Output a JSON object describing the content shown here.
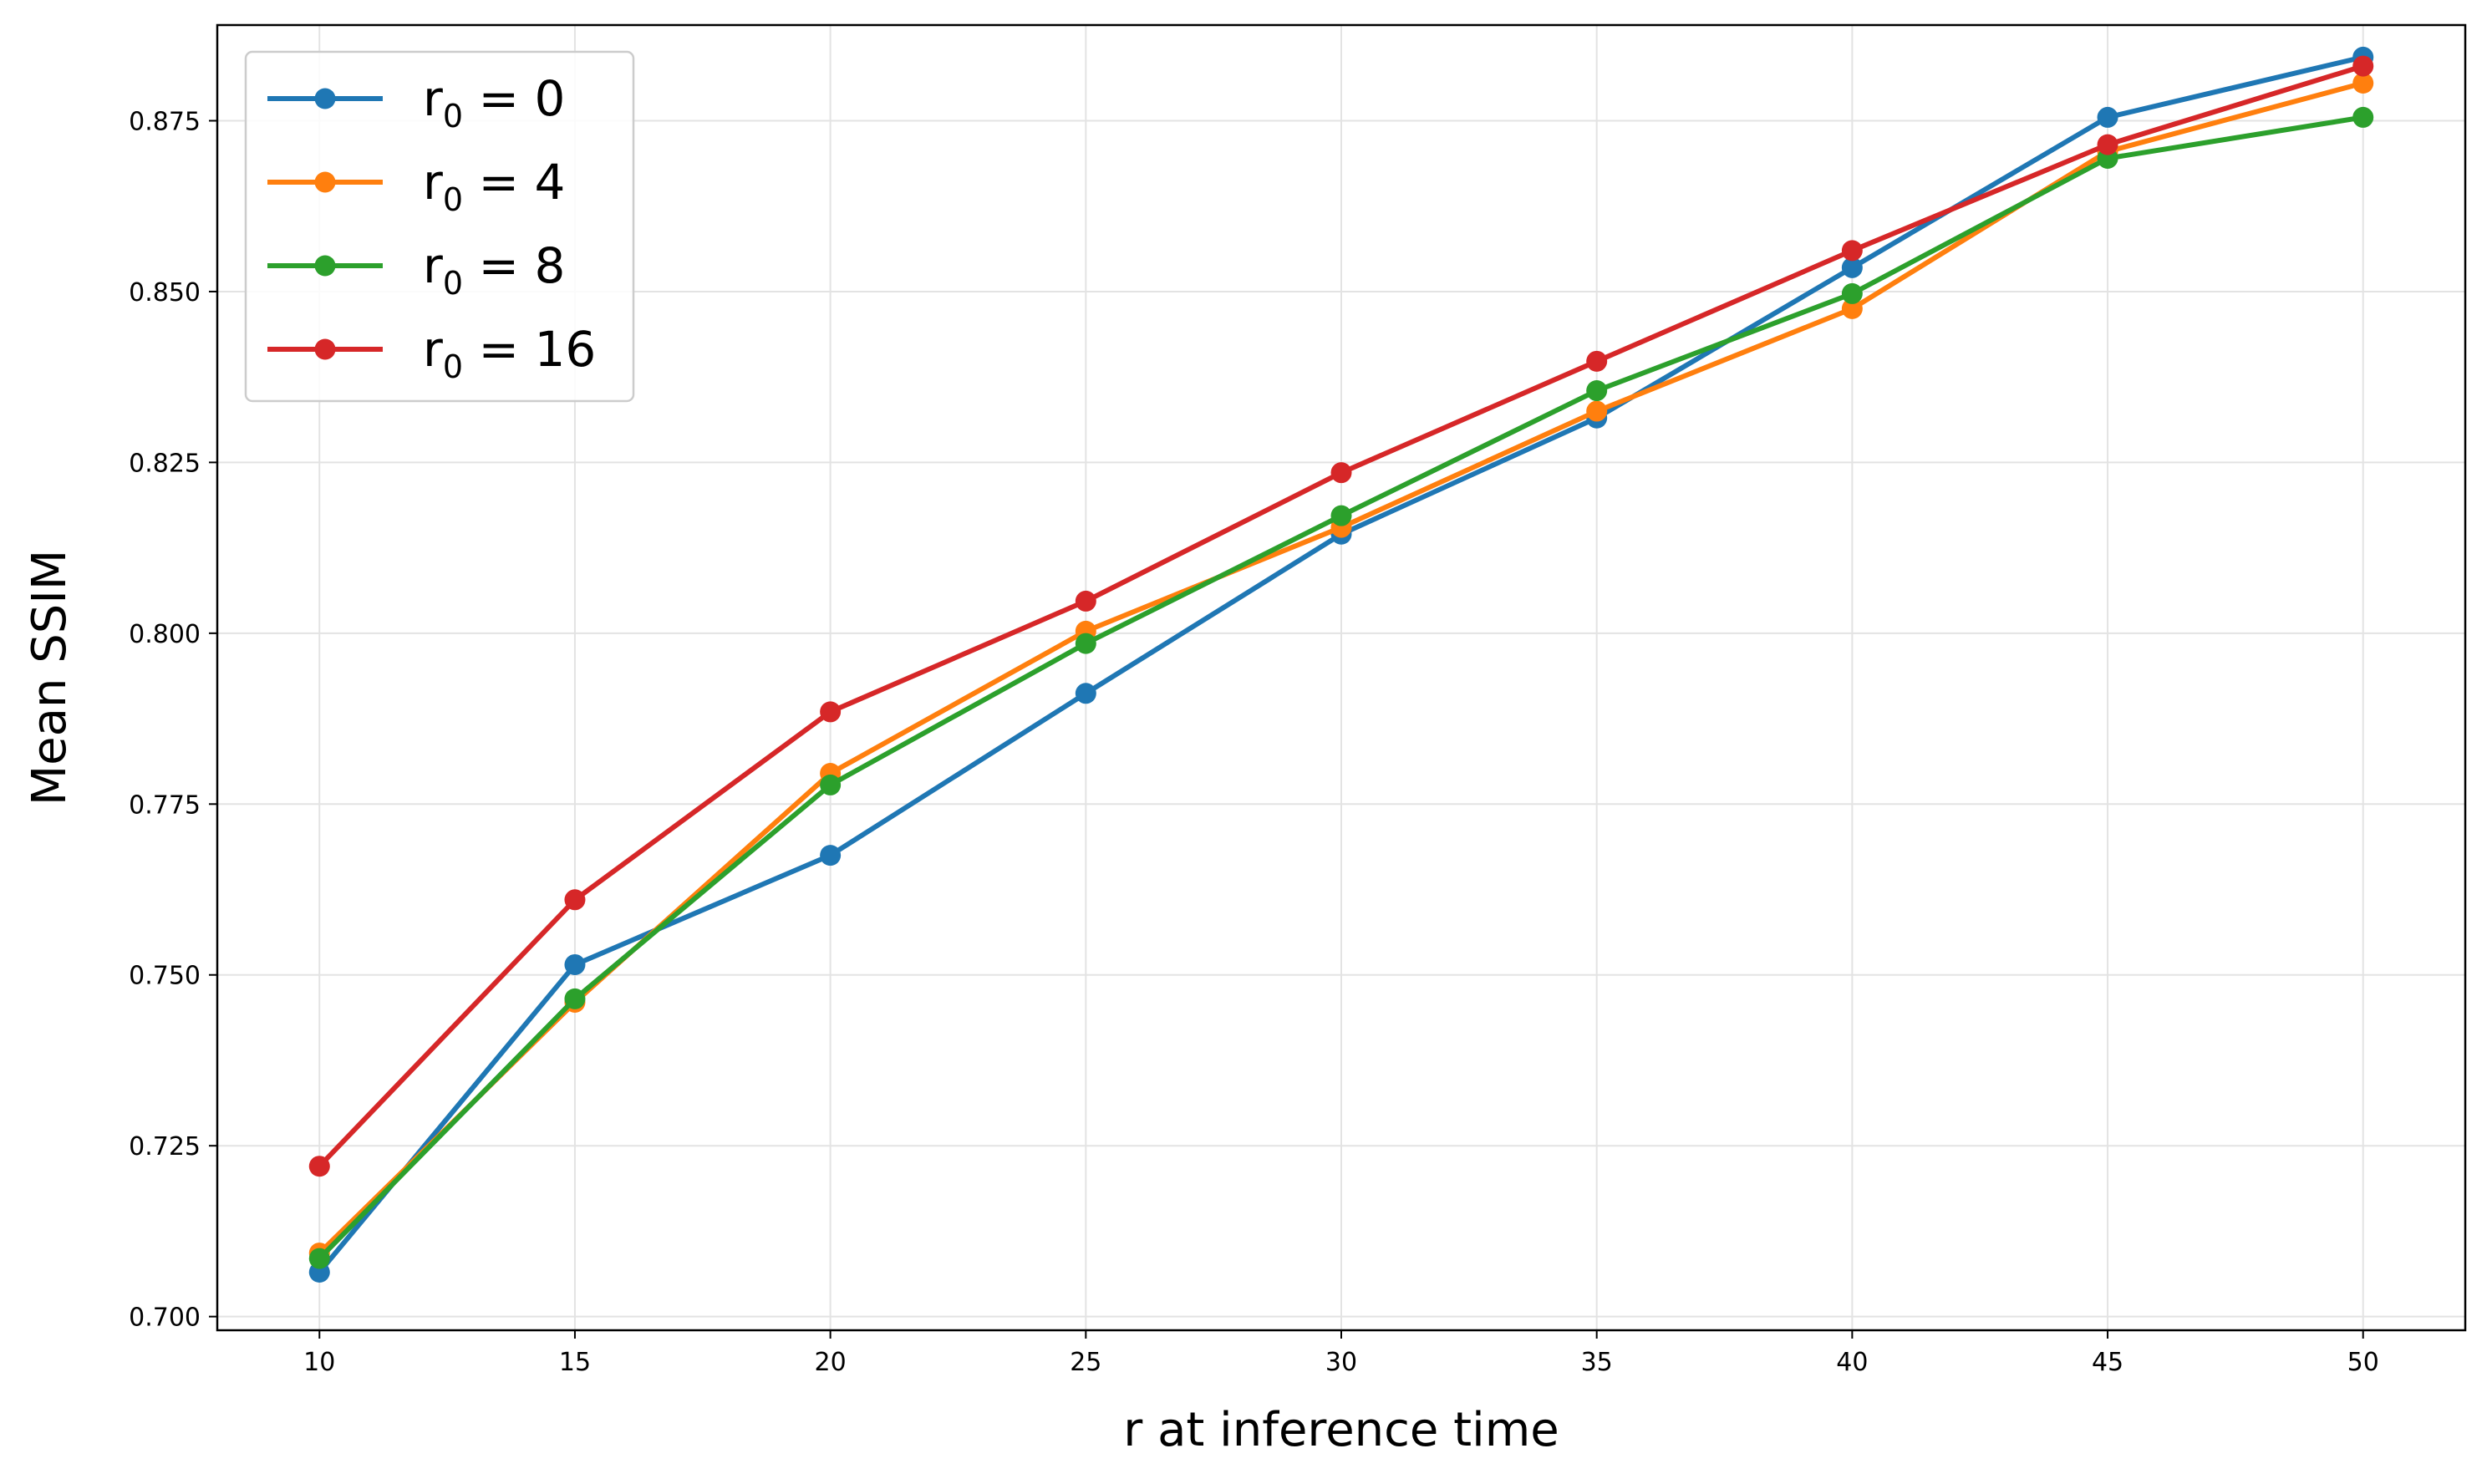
{
  "chart_data": {
    "type": "line",
    "xlabel": "r at inference time",
    "ylabel": "Mean SSIM",
    "x": [
      10,
      15,
      20,
      25,
      30,
      35,
      40,
      45,
      50
    ],
    "xlim": [
      8,
      52
    ],
    "ylim": [
      0.698,
      0.889
    ],
    "x_ticks": [
      "10",
      "15",
      "20",
      "25",
      "30",
      "35",
      "40",
      "45",
      "50"
    ],
    "y_ticks": [
      "0.700",
      "0.725",
      "0.750",
      "0.775",
      "0.800",
      "0.825",
      "0.850",
      "0.875"
    ],
    "grid": true,
    "legend_position": "upper left",
    "series": [
      {
        "name": "r0 = 0",
        "label_base": "r",
        "label_sub": "0",
        "label_rest": " = 0",
        "color": "#1f77b4",
        "values": [
          0.7065,
          0.7515,
          0.7675,
          0.7912,
          0.8145,
          0.8315,
          0.8535,
          0.8755,
          0.8843
        ]
      },
      {
        "name": "r0 = 4",
        "label_base": "r",
        "label_sub": "0",
        "label_rest": " = 4",
        "color": "#ff7f0e",
        "values": [
          0.7093,
          0.746,
          0.7795,
          0.8003,
          0.8155,
          0.8325,
          0.8475,
          0.8705,
          0.8805
        ]
      },
      {
        "name": "r0 = 8",
        "label_base": "r",
        "label_sub": "0",
        "label_rest": " = 8",
        "color": "#2ca02c",
        "values": [
          0.7085,
          0.7465,
          0.7778,
          0.7985,
          0.8172,
          0.8355,
          0.8497,
          0.8695,
          0.8755
        ]
      },
      {
        "name": "r0 = 16",
        "label_base": "r",
        "label_sub": "0",
        "label_rest": " = 16",
        "color": "#d62728",
        "values": [
          0.722,
          0.761,
          0.7885,
          0.8047,
          0.8235,
          0.8398,
          0.856,
          0.8715,
          0.883
        ]
      }
    ]
  }
}
